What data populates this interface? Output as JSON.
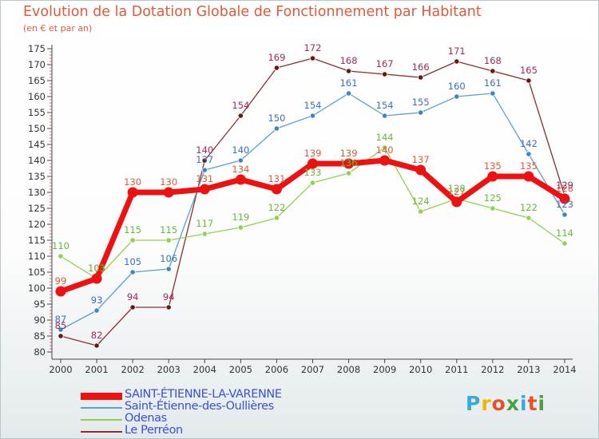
{
  "header": {
    "title": "Evolution de la Dotation Globale de Fonctionnement par Habitant",
    "subtitle": "(en € et par an)"
  },
  "brand": {
    "letters": [
      "P",
      "r",
      "o",
      "x",
      "i",
      "t",
      "i"
    ],
    "colors": [
      "#3aa8e0",
      "#f4b400",
      "#e8502a",
      "#48a23f",
      "#3aa8e0",
      "#e8502a",
      "#48a23f"
    ]
  },
  "chart_data": {
    "type": "line",
    "x": [
      "2000",
      "2001",
      "2002",
      "2003",
      "2004",
      "2005",
      "2006",
      "2007",
      "2008",
      "2009",
      "2010",
      "2011",
      "2012",
      "2013",
      "2014"
    ],
    "ylim": [
      80,
      175
    ],
    "y_ticks": [
      80,
      85,
      90,
      95,
      100,
      105,
      110,
      115,
      120,
      125,
      130,
      135,
      140,
      145,
      150,
      155,
      160,
      165,
      170,
      175
    ],
    "grid": false,
    "legend_position": "bottom-left",
    "series": [
      {
        "name": "SAINT-ÉTIENNE-LA-VARENNE",
        "color": "#ee1111",
        "label_color": "#e05a3a",
        "marker": "#ee1111",
        "values": [
          99,
          103,
          130,
          130,
          131,
          134,
          131,
          139,
          139,
          140,
          137,
          127,
          135,
          135,
          128
        ]
      },
      {
        "name": "Saint-Étienne-des-Oullières",
        "color": "#5a9fd4",
        "label_color": "#3a70c0",
        "marker": "#3a86c8",
        "values": [
          87,
          93,
          105,
          106,
          137,
          140,
          150,
          154,
          161,
          154,
          155,
          160,
          161,
          142,
          123
        ]
      },
      {
        "name": "Odenas",
        "color": "#92d050",
        "label_color": "#6ab83a",
        "marker": "#92d050",
        "values": [
          110,
          103,
          115,
          115,
          117,
          119,
          122,
          133,
          136,
          144,
          124,
          128,
          125,
          122,
          114
        ]
      },
      {
        "name": "Le Perréon",
        "color": "#8b2e2e",
        "label_color": "#a02a5a",
        "marker": "#6b1515",
        "values": [
          85,
          82,
          94,
          94,
          140,
          154,
          169,
          172,
          168,
          167,
          166,
          171,
          168,
          165,
          129
        ]
      }
    ]
  }
}
